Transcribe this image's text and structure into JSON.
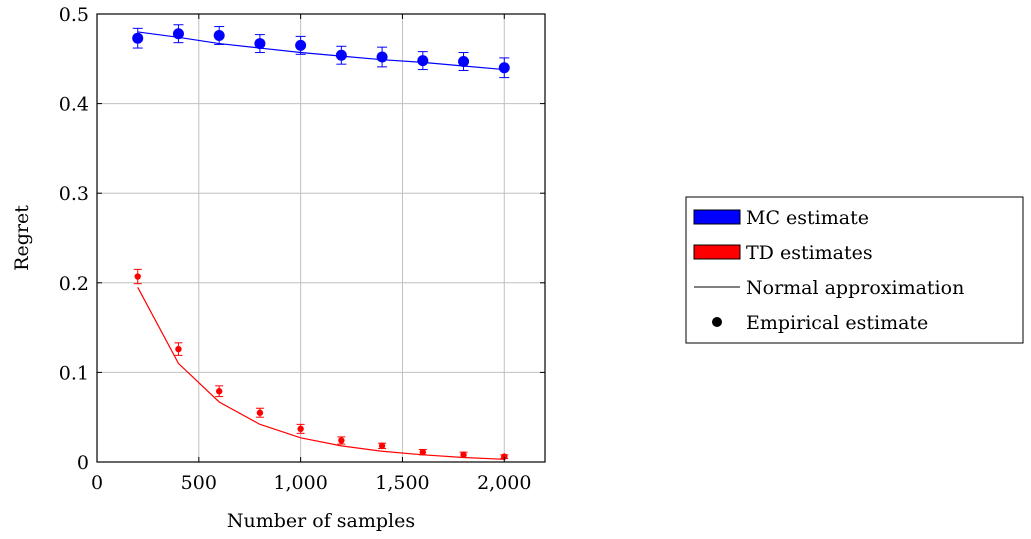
{
  "chart_data": {
    "type": "scatter",
    "xlabel": "Number of samples",
    "ylabel": "Regret",
    "xlim": [
      0,
      2200
    ],
    "ylim": [
      0,
      0.5
    ],
    "x_ticks": [
      0,
      500,
      1000,
      1500,
      2000
    ],
    "x_tick_labels": [
      "0",
      "500",
      "1,000",
      "1,500",
      "2,000"
    ],
    "y_ticks": [
      0,
      0.1,
      0.2,
      0.3,
      0.4,
      0.5
    ],
    "y_tick_labels": [
      "0",
      "0.1",
      "0.2",
      "0.3",
      "0.4",
      "0.5"
    ],
    "grid": true,
    "legend_position": "right",
    "legend": [
      {
        "label": "MC estimate",
        "kind": "patch",
        "color": "#0000ff"
      },
      {
        "label": "TD estimates",
        "kind": "patch",
        "color": "#ff0000"
      },
      {
        "label": "Normal approximation",
        "kind": "line",
        "color": "#000000"
      },
      {
        "label": "Empirical estimate",
        "kind": "dot",
        "color": "#000000"
      }
    ],
    "x": [
      200,
      400,
      600,
      800,
      1000,
      1200,
      1400,
      1600,
      1800,
      2000
    ],
    "series": [
      {
        "color": "#0000ff",
        "marker_size": "large",
        "empirical": [
          0.473,
          0.478,
          0.476,
          0.467,
          0.465,
          0.454,
          0.452,
          0.448,
          0.447,
          0.44
        ],
        "error": [
          0.011,
          0.01,
          0.01,
          0.01,
          0.01,
          0.01,
          0.011,
          0.01,
          0.01,
          0.011
        ],
        "normal_approximation": [
          0.48,
          0.474,
          0.467,
          0.462,
          0.457,
          0.453,
          0.449,
          0.446,
          0.442,
          0.438
        ]
      },
      {
        "color": "#ff0000",
        "marker_size": "small",
        "empirical": [
          0.207,
          0.126,
          0.079,
          0.055,
          0.037,
          0.024,
          0.018,
          0.011,
          0.008,
          0.006
        ],
        "error": [
          0.008,
          0.007,
          0.006,
          0.005,
          0.005,
          0.004,
          0.003,
          0.003,
          0.003,
          0.002
        ],
        "normal_approximation": [
          0.195,
          0.11,
          0.067,
          0.042,
          0.027,
          0.018,
          0.012,
          0.008,
          0.005,
          0.003
        ]
      }
    ]
  }
}
